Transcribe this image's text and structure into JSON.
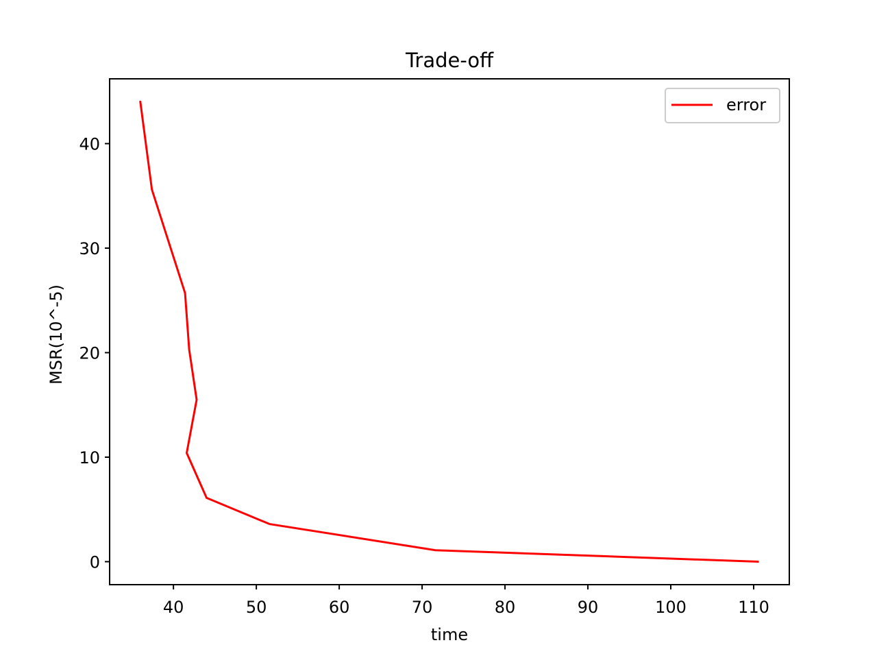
{
  "chart_data": {
    "type": "line",
    "title": "Trade-off",
    "xlabel": "time",
    "ylabel": "MSR(10^-5)",
    "xlim": [
      32.3,
      114.3
    ],
    "ylim": [
      -2.2,
      46.2
    ],
    "xticks": [
      40,
      50,
      60,
      70,
      80,
      90,
      100,
      110
    ],
    "yticks": [
      0,
      10,
      20,
      30,
      40
    ],
    "grid": false,
    "legend_position": "top-right",
    "series": [
      {
        "name": "error",
        "color": "#ff0000",
        "x": [
          36.0,
          37.4,
          41.4,
          41.9,
          42.8,
          41.6,
          44.0,
          51.6,
          71.6,
          110.5
        ],
        "y": [
          44.0,
          35.6,
          25.7,
          20.3,
          15.5,
          10.4,
          6.1,
          3.6,
          1.1,
          0.0
        ]
      }
    ]
  }
}
